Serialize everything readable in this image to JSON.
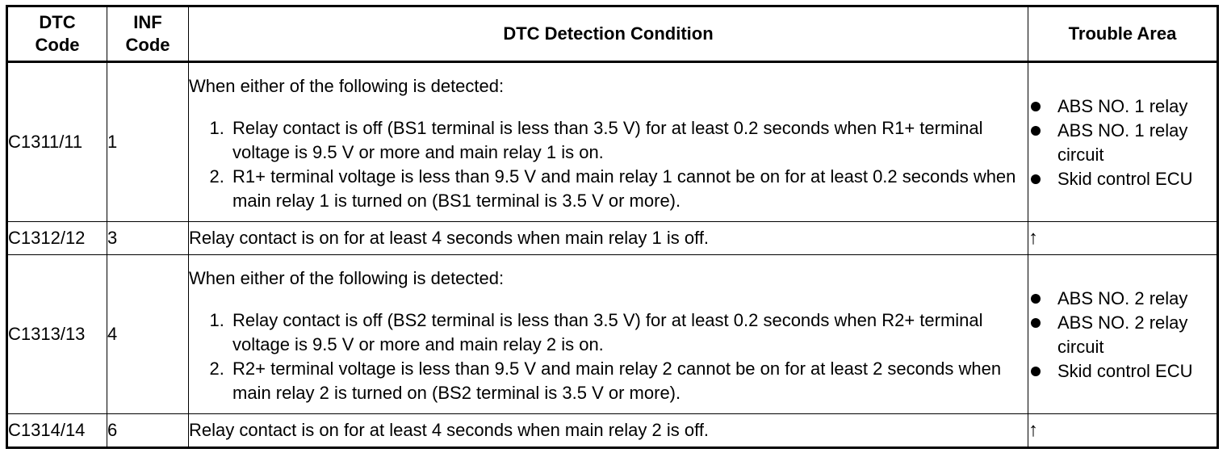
{
  "headers": {
    "dtc_code": "DTC Code",
    "inf_code": "INF Code",
    "condition": "DTC Detection Condition",
    "trouble_area": "Trouble Area"
  },
  "rows": [
    {
      "dtc": "C1311/11",
      "inf": "1",
      "lead": "When either of the following is detected:",
      "steps": [
        "Relay contact is off (BS1 terminal is less than 3.5 V) for at least 0.2 seconds when R1+ terminal voltage is 9.5 V or more and main relay 1 is on.",
        "R1+ terminal voltage is less than 9.5 V and main relay 1 cannot be on for at least 0.2 seconds when main relay 1 is turned on (BS1 terminal is 3.5 V or more)."
      ],
      "areas": [
        "ABS NO. 1 relay",
        "ABS NO. 1 relay circuit",
        "Skid control ECU"
      ]
    },
    {
      "dtc": "C1312/12",
      "inf": "3",
      "condition": "Relay contact is on for at least 4 seconds when main relay 1 is off.",
      "area_arrow": "↑"
    },
    {
      "dtc": "C1313/13",
      "inf": "4",
      "lead": "When either of the following is detected:",
      "steps": [
        "Relay contact is off (BS2 terminal is less than 3.5 V) for at least 0.2 seconds when R2+ terminal voltage is 9.5 V or more and main relay 2 is on.",
        "R2+ terminal voltage is less than 9.5 V and main relay 2 cannot be on for at least 2 seconds when main relay 2 is turned on (BS2 terminal is 3.5 V or more)."
      ],
      "areas": [
        "ABS NO. 2 relay",
        "ABS NO. 2 relay circuit",
        "Skid control ECU"
      ]
    },
    {
      "dtc": "C1314/14",
      "inf": "6",
      "condition": "Relay contact is on for at least 4 seconds when main relay 2 is off.",
      "area_arrow": "↑"
    }
  ]
}
